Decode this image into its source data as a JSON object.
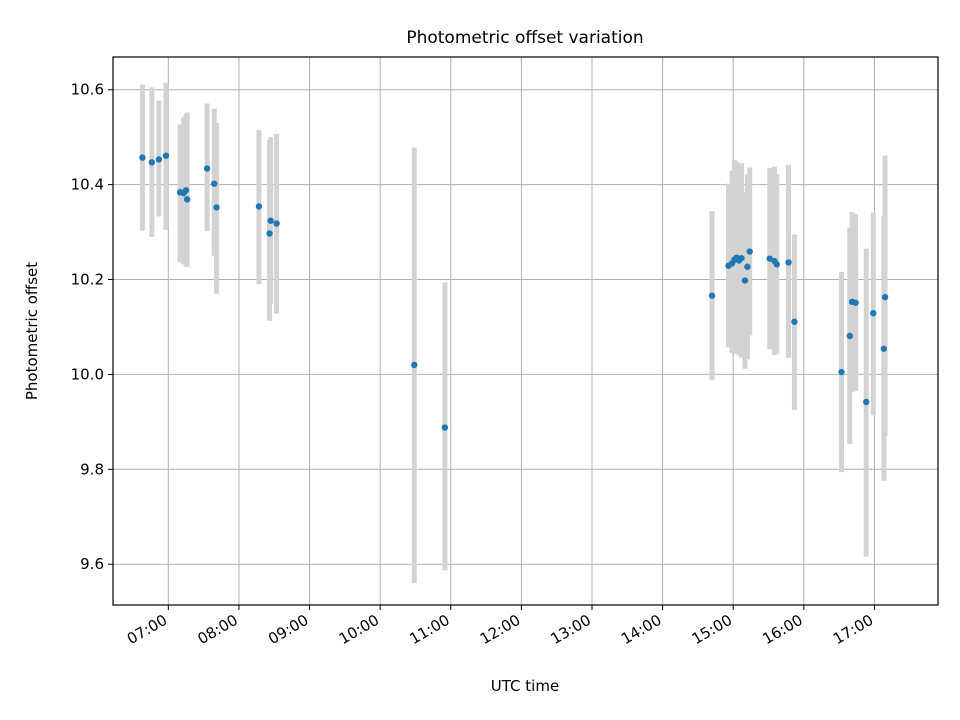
{
  "chart_data": {
    "type": "scatter",
    "title": "Photometric offset variation",
    "xlabel": "UTC time",
    "ylabel": "Photometric offset",
    "xlim": [
      "06:13",
      "17:54"
    ],
    "ylim": [
      9.514,
      10.669
    ],
    "x_ticks": [
      "07:00",
      "08:00",
      "09:00",
      "10:00",
      "11:00",
      "12:00",
      "13:00",
      "14:00",
      "15:00",
      "16:00",
      "17:00"
    ],
    "y_ticks": [
      "9.6",
      "9.8",
      "10.0",
      "10.2",
      "10.4",
      "10.6"
    ],
    "grid": true,
    "colors": {
      "points": "#1f77b4",
      "errorbars": "#d3d3d3",
      "grid": "#b0b0b0"
    },
    "points": [
      {
        "x": "06:38",
        "y": 10.457,
        "ylo": 10.303,
        "yhi": 10.611
      },
      {
        "x": "06:46",
        "y": 10.447,
        "ylo": 10.29,
        "yhi": 10.605
      },
      {
        "x": "06:52",
        "y": 10.453,
        "ylo": 10.333,
        "yhi": 10.577
      },
      {
        "x": "06:58",
        "y": 10.461,
        "ylo": 10.305,
        "yhi": 10.615
      },
      {
        "x": "07:10",
        "y": 10.384,
        "ylo": 10.237,
        "yhi": 10.527
      },
      {
        "x": "07:13",
        "y": 10.382,
        "ylo": 10.232,
        "yhi": 10.542
      },
      {
        "x": "07:15",
        "y": 10.388,
        "ylo": 10.227,
        "yhi": 10.548
      },
      {
        "x": "07:16",
        "y": 10.369,
        "ylo": 10.227,
        "yhi": 10.552
      },
      {
        "x": "07:33",
        "y": 10.434,
        "ylo": 10.302,
        "yhi": 10.571
      },
      {
        "x": "07:39",
        "y": 10.402,
        "ylo": 10.25,
        "yhi": 10.56
      },
      {
        "x": "07:41",
        "y": 10.352,
        "ylo": 10.17,
        "yhi": 10.53
      },
      {
        "x": "08:17",
        "y": 10.354,
        "ylo": 10.19,
        "yhi": 10.515
      },
      {
        "x": "08:26",
        "y": 10.297,
        "ylo": 10.113,
        "yhi": 10.494
      },
      {
        "x": "08:27",
        "y": 10.324,
        "ylo": 10.149,
        "yhi": 10.5
      },
      {
        "x": "08:32",
        "y": 10.318,
        "ylo": 10.128,
        "yhi": 10.507
      },
      {
        "x": "10:29",
        "y": 10.02,
        "ylo": 9.56,
        "yhi": 10.478
      },
      {
        "x": "10:55",
        "y": 9.888,
        "ylo": 9.587,
        "yhi": 10.194
      },
      {
        "x": "14:42",
        "y": 10.166,
        "ylo": 9.988,
        "yhi": 10.344
      },
      {
        "x": "14:56",
        "y": 10.229,
        "ylo": 10.057,
        "yhi": 10.402
      },
      {
        "x": "14:59",
        "y": 10.234,
        "ylo": 10.045,
        "yhi": 10.429
      },
      {
        "x": "15:01",
        "y": 10.242,
        "ylo": 10.043,
        "yhi": 10.452
      },
      {
        "x": "15:03",
        "y": 10.246,
        "ylo": 10.049,
        "yhi": 10.448
      },
      {
        "x": "15:05",
        "y": 10.24,
        "ylo": 10.04,
        "yhi": 10.43
      },
      {
        "x": "15:07",
        "y": 10.245,
        "ylo": 10.035,
        "yhi": 10.445
      },
      {
        "x": "15:10",
        "y": 10.198,
        "ylo": 10.012,
        "yhi": 10.384
      },
      {
        "x": "15:12",
        "y": 10.227,
        "ylo": 10.032,
        "yhi": 10.421
      },
      {
        "x": "15:14",
        "y": 10.259,
        "ylo": 10.082,
        "yhi": 10.436
      },
      {
        "x": "15:31",
        "y": 10.244,
        "ylo": 10.053,
        "yhi": 10.435
      },
      {
        "x": "15:35",
        "y": 10.239,
        "ylo": 10.041,
        "yhi": 10.438
      },
      {
        "x": "15:37",
        "y": 10.232,
        "ylo": 10.043,
        "yhi": 10.422
      },
      {
        "x": "15:47",
        "y": 10.236,
        "ylo": 10.035,
        "yhi": 10.441
      },
      {
        "x": "15:52",
        "y": 10.111,
        "ylo": 9.925,
        "yhi": 10.295
      },
      {
        "x": "16:32",
        "y": 10.005,
        "ylo": 9.794,
        "yhi": 10.216
      },
      {
        "x": "16:39",
        "y": 10.081,
        "ylo": 9.853,
        "yhi": 10.309
      },
      {
        "x": "16:41",
        "y": 10.153,
        "ylo": 9.963,
        "yhi": 10.342
      },
      {
        "x": "16:44",
        "y": 10.151,
        "ylo": 9.965,
        "yhi": 10.338
      },
      {
        "x": "16:53",
        "y": 9.942,
        "ylo": 9.616,
        "yhi": 10.265
      },
      {
        "x": "16:59",
        "y": 10.129,
        "ylo": 9.914,
        "yhi": 10.341
      },
      {
        "x": "17:08",
        "y": 10.054,
        "ylo": 9.776,
        "yhi": 10.335
      },
      {
        "x": "17:09",
        "y": 10.163,
        "ylo": 9.87,
        "yhi": 10.461
      }
    ]
  }
}
